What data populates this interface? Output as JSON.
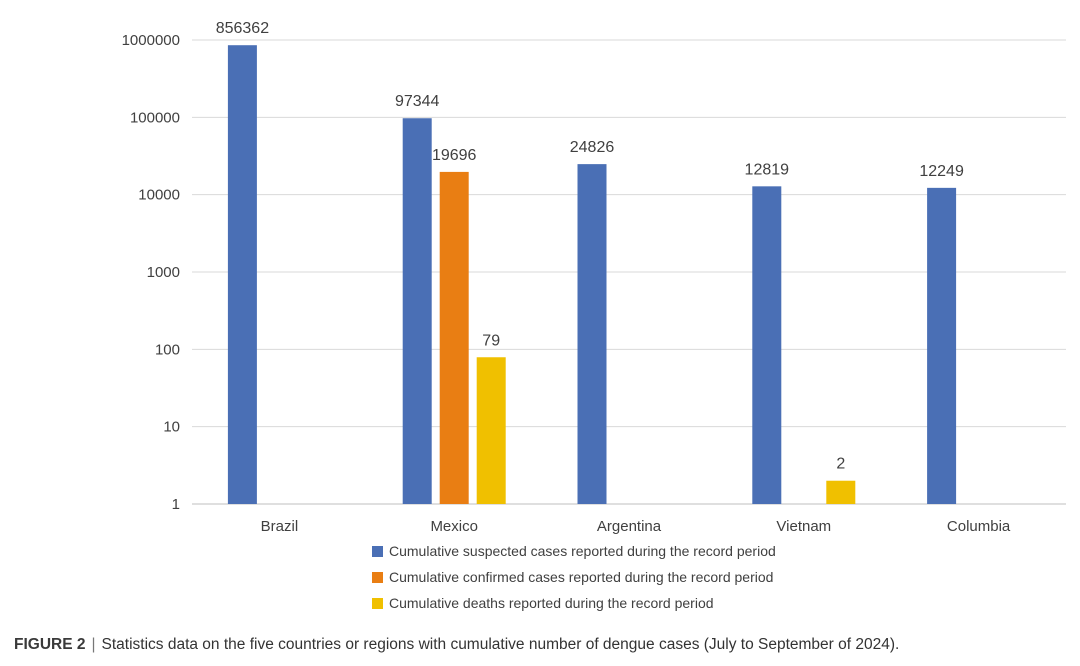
{
  "chart_data": {
    "type": "bar",
    "scale": "log",
    "categories": [
      "Brazil",
      "Mexico",
      "Argentina",
      "Vietnam",
      "Columbia"
    ],
    "series": [
      {
        "name": "Cumulative suspected cases reported during the record period",
        "color": "#4a6fb5",
        "values": [
          856362,
          97344,
          24826,
          12819,
          12249
        ]
      },
      {
        "name": "Cumulative confirmed cases reported during the record period",
        "color": "#e97e13",
        "values": [
          null,
          19696,
          null,
          null,
          null
        ]
      },
      {
        "name": "Cumulative deaths reported during the record period",
        "color": "#f0c000",
        "values": [
          null,
          79,
          null,
          2,
          null
        ]
      }
    ],
    "yticks": [
      "1",
      "10",
      "100",
      "1000",
      "10000",
      "100000",
      "1000000"
    ],
    "ylim": [
      1,
      1000000
    ],
    "grid": true,
    "legend_position": "bottom",
    "gridline_color": "#d9d9d9",
    "text_color": "#404040"
  },
  "caption": {
    "label": "FIGURE 2",
    "separator": "|",
    "text": "Statistics data on the five countries or regions with cumulative number of dengue cases (July to September of 2024)."
  }
}
